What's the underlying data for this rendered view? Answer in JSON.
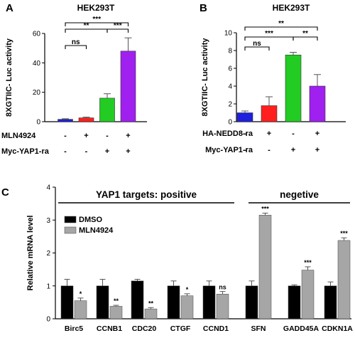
{
  "chart_data": [
    {
      "panel": "A",
      "type": "bar",
      "title": "HEK293T",
      "ylabel": "8XGTIIC- Luc activity",
      "ylim": [
        0,
        60
      ],
      "yticks": [
        0,
        20,
        40,
        60
      ],
      "conditions": [
        {
          "name": "MLN4924",
          "values": [
            "-",
            "+",
            "-",
            "+"
          ]
        },
        {
          "name": "Myc-YAP1-ra",
          "values": [
            "-",
            "-",
            "+",
            "+"
          ]
        }
      ],
      "values": [
        1.6,
        2.6,
        16,
        48
      ],
      "errors": [
        0.4,
        0.5,
        3,
        9
      ],
      "colors": [
        "#1f1fe0",
        "#ff1f1f",
        "#22cc22",
        "#a020f0"
      ],
      "significance": [
        {
          "from": 0,
          "to": 1,
          "label": "ns"
        },
        {
          "from": 0,
          "to": 2,
          "label": "**"
        },
        {
          "from": 2,
          "to": 3,
          "label": "***"
        },
        {
          "from": 0,
          "to": 3,
          "label": "***"
        }
      ]
    },
    {
      "panel": "B",
      "type": "bar",
      "title": "HEK293T",
      "ylabel": "8XGTIIC- Luc activity",
      "ylim": [
        0,
        10
      ],
      "yticks": [
        0,
        2,
        4,
        6,
        8,
        10
      ],
      "conditions": [
        {
          "name": "HA-NEDD8-ra",
          "values": [
            "-",
            "+",
            "-",
            "+"
          ]
        },
        {
          "name": "Myc-YAP1-ra",
          "values": [
            "-",
            "-",
            "+",
            "+"
          ]
        }
      ],
      "values": [
        1.0,
        1.8,
        7.5,
        4.0
      ],
      "errors": [
        0.2,
        1.0,
        0.3,
        1.3
      ],
      "colors": [
        "#1f1fe0",
        "#ff1f1f",
        "#22cc22",
        "#a020f0"
      ],
      "significance": [
        {
          "from": 0,
          "to": 1,
          "label": "ns"
        },
        {
          "from": 0,
          "to": 2,
          "label": "***"
        },
        {
          "from": 2,
          "to": 3,
          "label": "**"
        },
        {
          "from": 0,
          "to": 3,
          "label": "**"
        }
      ]
    },
    {
      "panel": "C",
      "type": "bar",
      "ylabel": "Relative mRNA level",
      "ylim": [
        0,
        4
      ],
      "yticks": [
        0,
        1,
        2,
        3,
        4
      ],
      "categories": [
        "Birc5",
        "CCNB1",
        "CDC20",
        "CTGF",
        "CCND1",
        "SFN",
        "GADD45A",
        "CDKN1A"
      ],
      "series": [
        {
          "name": "DMSO",
          "color": "#000000",
          "values": [
            1.0,
            1.0,
            1.15,
            1.0,
            1.0,
            1.0,
            1.0,
            1.0
          ],
          "errors": [
            0.2,
            0.2,
            0.05,
            0.15,
            0.15,
            0.15,
            0.03,
            0.12
          ]
        },
        {
          "name": "MLN4924",
          "color": "#a6a6a6",
          "values": [
            0.55,
            0.38,
            0.3,
            0.7,
            0.75,
            3.15,
            1.48,
            2.38
          ],
          "errors": [
            0.08,
            0.03,
            0.04,
            0.06,
            0.08,
            0.06,
            0.1,
            0.08
          ]
        }
      ],
      "significance": [
        "*",
        "**",
        "**",
        "*",
        "ns",
        "***",
        "***",
        "***"
      ],
      "groups": [
        {
          "label": "YAP1 targets: positive",
          "from": 0,
          "to": 4
        },
        {
          "label": "negetive",
          "from": 5,
          "to": 7
        }
      ]
    }
  ]
}
